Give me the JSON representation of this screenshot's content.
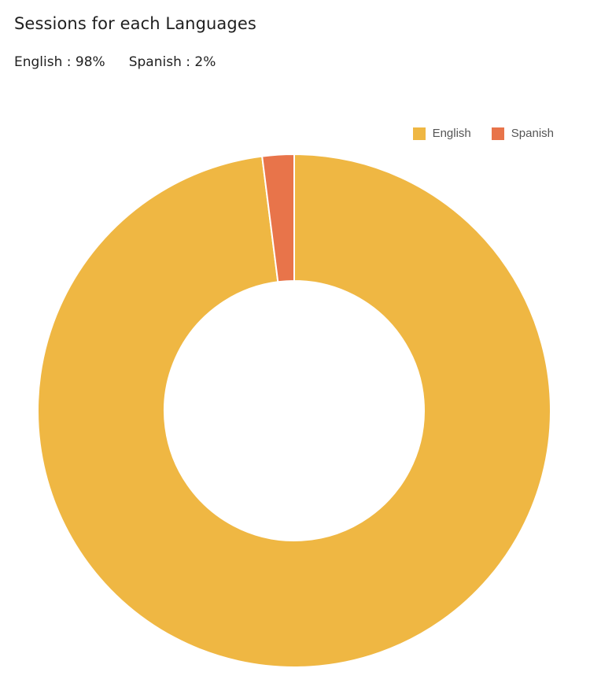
{
  "title": "Sessions for each Languages",
  "summary": [
    {
      "text": "English : 98%"
    },
    {
      "text": "Spanish : 2%"
    }
  ],
  "legend": [
    {
      "label": "English",
      "color": "#EFB743"
    },
    {
      "label": "Spanish",
      "color": "#E8744A"
    }
  ],
  "chart_data": {
    "type": "pie",
    "variant": "donut",
    "title": "Sessions for each Languages",
    "categories": [
      "English",
      "Spanish"
    ],
    "values": [
      98,
      2
    ],
    "colors": [
      "#EFB743",
      "#E8744A"
    ],
    "legend_position": "top-right"
  }
}
